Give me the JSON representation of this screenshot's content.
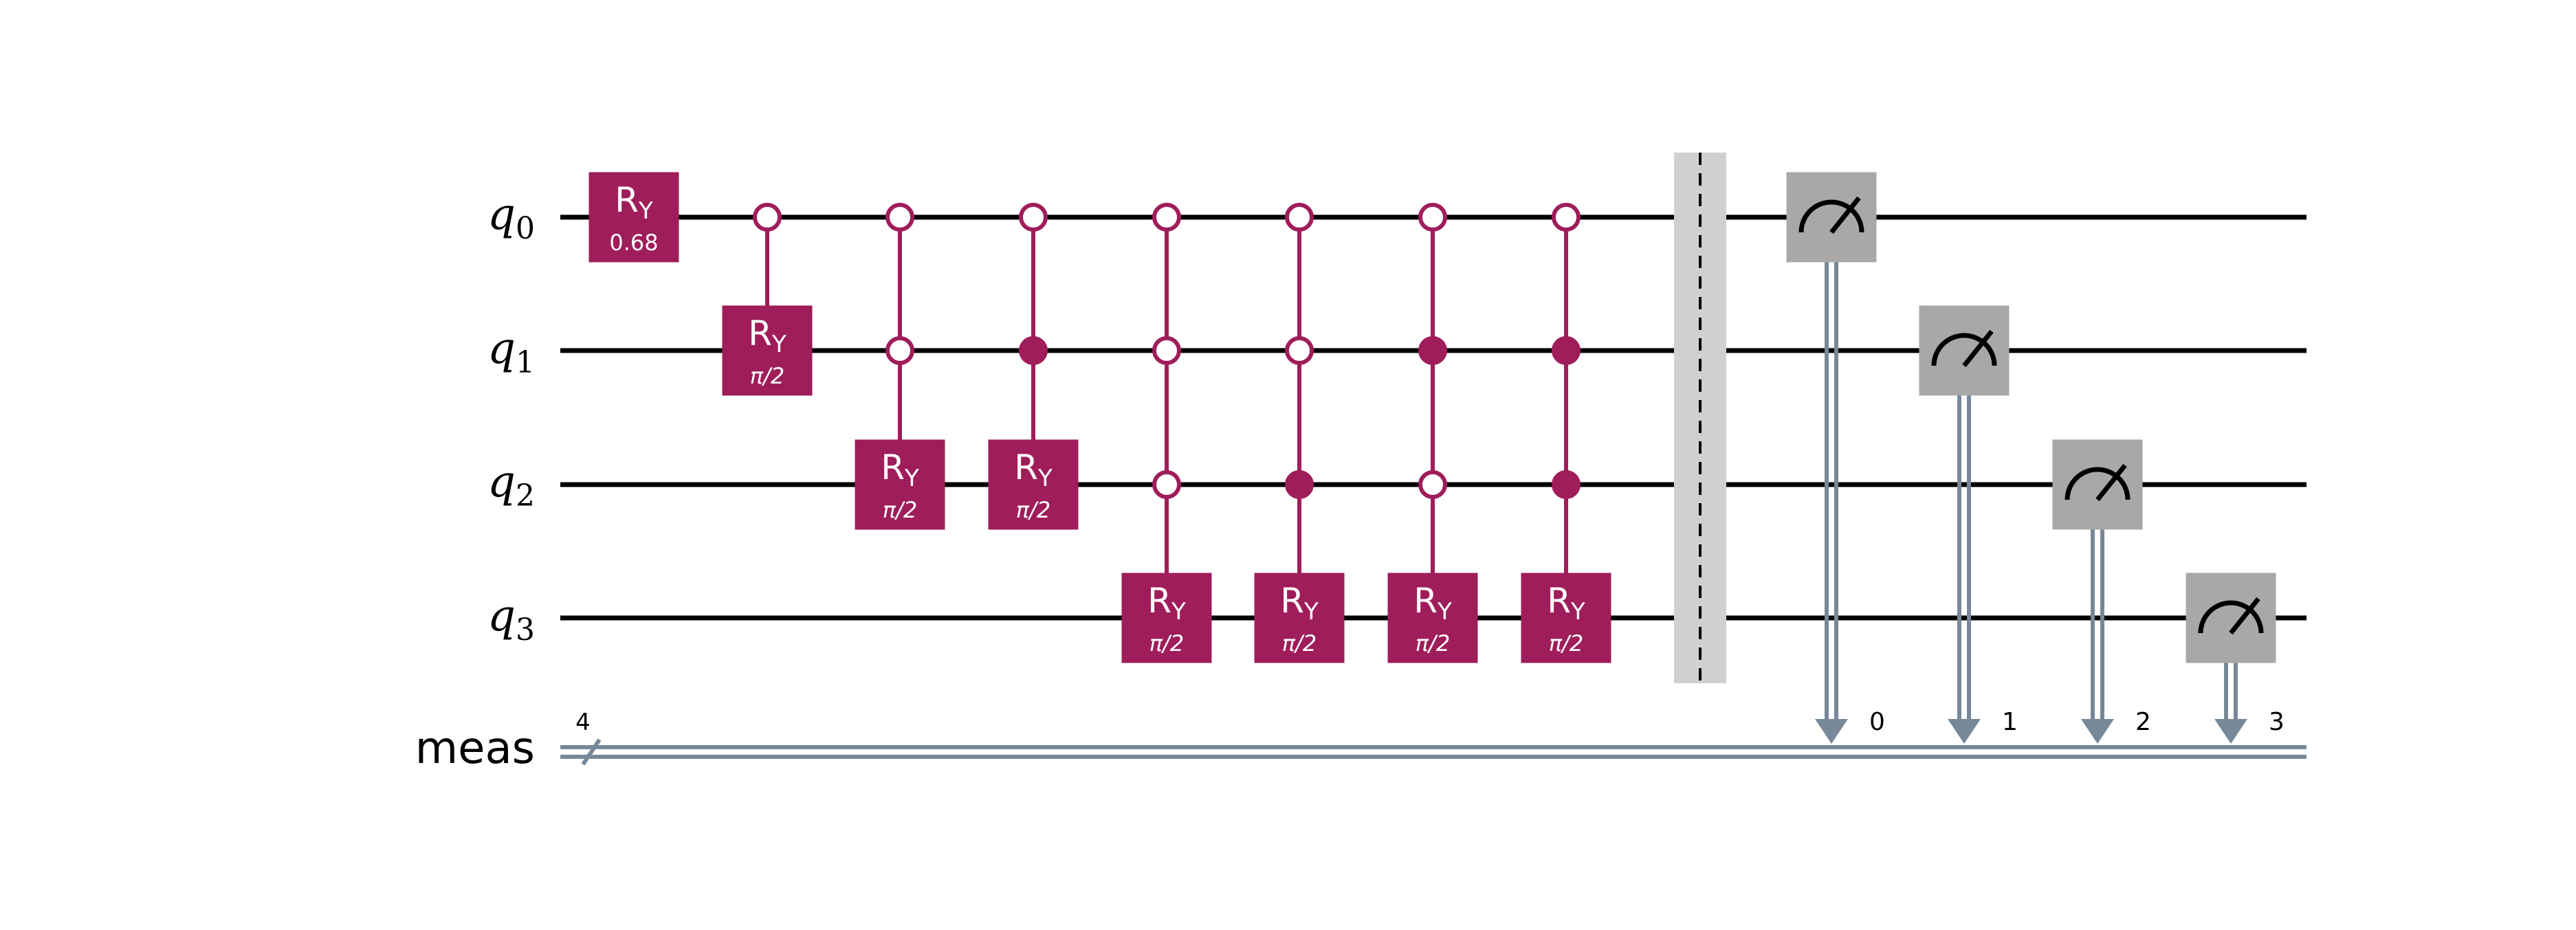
{
  "circuit": {
    "qubits": [
      {
        "name": "q",
        "index": "0"
      },
      {
        "name": "q",
        "index": "1"
      },
      {
        "name": "q",
        "index": "2"
      },
      {
        "name": "q",
        "index": "3"
      }
    ],
    "creg": {
      "name": "meas",
      "size": "4"
    },
    "colors": {
      "gate": "#9f1d5a",
      "measure": "#a8a8a8",
      "classical": "#778899",
      "barrier": "#d0d0d0",
      "wire": "#000000",
      "text": "#ffffff"
    },
    "gates": [
      {
        "name": "R",
        "sub": "Y",
        "param": "0.68",
        "target": 0,
        "controls": []
      },
      {
        "name": "R",
        "sub": "Y",
        "param": "π/2",
        "target": 1,
        "controls": [
          {
            "q": 0,
            "state": "open"
          }
        ]
      },
      {
        "name": "R",
        "sub": "Y",
        "param": "π/2",
        "target": 2,
        "controls": [
          {
            "q": 0,
            "state": "open"
          },
          {
            "q": 1,
            "state": "open"
          }
        ]
      },
      {
        "name": "R",
        "sub": "Y",
        "param": "π/2",
        "target": 2,
        "controls": [
          {
            "q": 0,
            "state": "open"
          },
          {
            "q": 1,
            "state": "filled"
          }
        ]
      },
      {
        "name": "R",
        "sub": "Y",
        "param": "π/2",
        "target": 3,
        "controls": [
          {
            "q": 0,
            "state": "open"
          },
          {
            "q": 1,
            "state": "open"
          },
          {
            "q": 2,
            "state": "open"
          }
        ]
      },
      {
        "name": "R",
        "sub": "Y",
        "param": "π/2",
        "target": 3,
        "controls": [
          {
            "q": 0,
            "state": "open"
          },
          {
            "q": 1,
            "state": "open"
          },
          {
            "q": 2,
            "state": "filled"
          }
        ]
      },
      {
        "name": "R",
        "sub": "Y",
        "param": "π/2",
        "target": 3,
        "controls": [
          {
            "q": 0,
            "state": "open"
          },
          {
            "q": 1,
            "state": "filled"
          },
          {
            "q": 2,
            "state": "open"
          }
        ]
      },
      {
        "name": "R",
        "sub": "Y",
        "param": "π/2",
        "target": 3,
        "controls": [
          {
            "q": 0,
            "state": "open"
          },
          {
            "q": 1,
            "state": "filled"
          },
          {
            "q": 2,
            "state": "filled"
          }
        ]
      }
    ],
    "barrier": {
      "qubits": [
        0,
        1,
        2,
        3
      ]
    },
    "measurements": [
      {
        "qubit": 0,
        "bit": "0"
      },
      {
        "qubit": 1,
        "bit": "1"
      },
      {
        "qubit": 2,
        "bit": "2"
      },
      {
        "qubit": 3,
        "bit": "3"
      }
    ]
  }
}
